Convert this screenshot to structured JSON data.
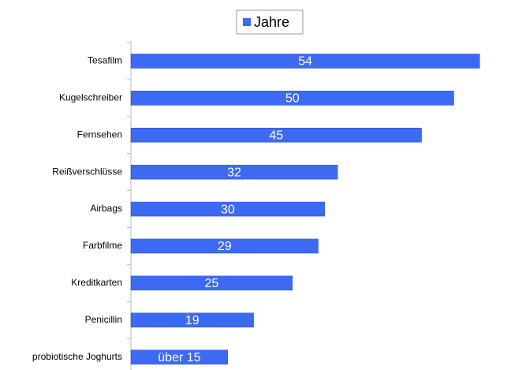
{
  "chart_data": {
    "type": "bar",
    "orientation": "horizontal",
    "categories": [
      "Tesafilm",
      "Kugelschreiber",
      "Fernsehen",
      "Reißverschlüsse",
      "Airbags",
      "Farbfilme",
      "Kreditkarten",
      "Penicillin",
      "probiotische Joghurts"
    ],
    "series": [
      {
        "name": "Jahre",
        "color": "#3d6af2",
        "values": [
          54,
          50,
          45,
          32,
          30,
          29,
          25,
          19,
          15
        ],
        "value_labels": [
          "54",
          "50",
          "45",
          "32",
          "30",
          "29",
          "25",
          "19",
          "über 15"
        ]
      }
    ],
    "xlim": [
      0,
      58
    ],
    "legend": "top"
  }
}
